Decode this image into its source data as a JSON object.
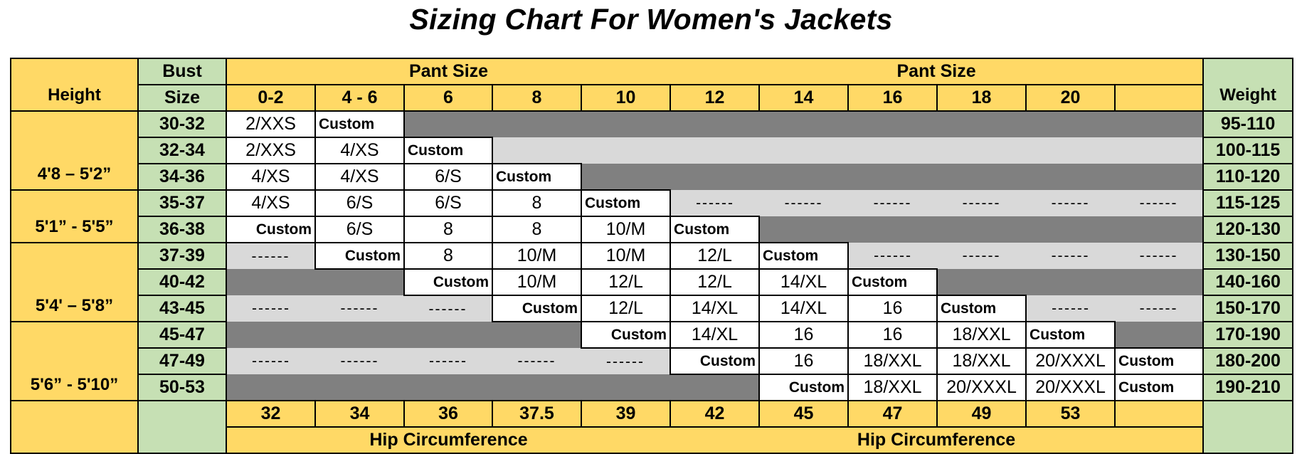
{
  "title": "Sizing Chart For Women's Jackets",
  "headers": {
    "height": "Height",
    "bust_top": "Bust",
    "bust_bottom": "Size",
    "pant_size_left": "Pant Size",
    "pant_size_right": "Pant Size",
    "weight": "Weight",
    "hip_left": "Hip Circumference",
    "hip_right": "Hip Circumference"
  },
  "pant_sizes": [
    "0-2",
    "4 - 6",
    "6",
    "8",
    "10",
    "12",
    "14",
    "16",
    "18",
    "20",
    ""
  ],
  "hip_values": [
    "32",
    "34",
    "36",
    "37.5",
    "39",
    "42",
    "45",
    "47",
    "49",
    "53",
    ""
  ],
  "height_groups": [
    "4'8 – 5'2”",
    "5'1” - 5'5”",
    "5'4' – 5'8”",
    "5'6” - 5'10”"
  ],
  "colors": {
    "yellow": "#FFD966",
    "green": "#C6E0B4",
    "dark_gray": "#808080",
    "light_gray": "#D9D9D9",
    "white": "#FFFFFF"
  },
  "rows": [
    {
      "bust": "30-32",
      "weight": "95-110",
      "cells": [
        [
          "w",
          "2/XXS"
        ],
        [
          "w",
          "Custom"
        ],
        [
          "dk",
          ""
        ],
        [
          "dk",
          ""
        ],
        [
          "dk",
          ""
        ],
        [
          "dk",
          ""
        ],
        [
          "dk",
          ""
        ],
        [
          "dk",
          ""
        ],
        [
          "dk",
          ""
        ],
        [
          "dk",
          ""
        ],
        [
          "dk",
          ""
        ]
      ]
    },
    {
      "bust": "32-34",
      "weight": "100-115",
      "cells": [
        [
          "w",
          "2/XXS"
        ],
        [
          "w",
          "4/XS"
        ],
        [
          "w",
          "Custom"
        ],
        [
          "lt",
          ""
        ],
        [
          "lt",
          ""
        ],
        [
          "lt",
          ""
        ],
        [
          "lt",
          ""
        ],
        [
          "lt",
          ""
        ],
        [
          "lt",
          ""
        ],
        [
          "lt",
          ""
        ],
        [
          "lt",
          ""
        ]
      ]
    },
    {
      "bust": "34-36",
      "weight": "110-120",
      "cells": [
        [
          "w",
          "4/XS"
        ],
        [
          "w",
          "4/XS"
        ],
        [
          "w",
          "6/S"
        ],
        [
          "w",
          "Custom"
        ],
        [
          "dk",
          ""
        ],
        [
          "dk",
          ""
        ],
        [
          "dk",
          ""
        ],
        [
          "dk",
          ""
        ],
        [
          "dk",
          ""
        ],
        [
          "dk",
          ""
        ],
        [
          "dk",
          ""
        ]
      ]
    },
    {
      "bust": "35-37",
      "weight": "115-125",
      "cells": [
        [
          "w",
          "4/XS"
        ],
        [
          "w",
          "6/S"
        ],
        [
          "w",
          "6/S"
        ],
        [
          "w",
          "8"
        ],
        [
          "w",
          "Custom"
        ],
        [
          "lt",
          "------"
        ],
        [
          "lt",
          "------"
        ],
        [
          "lt",
          "------"
        ],
        [
          "lt",
          "------"
        ],
        [
          "lt",
          "------"
        ],
        [
          "lt",
          "------"
        ]
      ]
    },
    {
      "bust": "36-38",
      "weight": "120-130",
      "cells": [
        [
          "w",
          "Custom"
        ],
        [
          "w",
          "6/S"
        ],
        [
          "w",
          "8"
        ],
        [
          "w",
          "8"
        ],
        [
          "w",
          "10/M"
        ],
        [
          "w",
          "Custom"
        ],
        [
          "dk",
          ""
        ],
        [
          "dk",
          ""
        ],
        [
          "dk",
          ""
        ],
        [
          "dk",
          ""
        ],
        [
          "dk",
          ""
        ]
      ]
    },
    {
      "bust": "37-39",
      "weight": "130-150",
      "cells": [
        [
          "lt",
          "------"
        ],
        [
          "w",
          "Custom"
        ],
        [
          "w",
          "8"
        ],
        [
          "w",
          "10/M"
        ],
        [
          "w",
          "10/M"
        ],
        [
          "w",
          "12/L"
        ],
        [
          "w",
          "Custom"
        ],
        [
          "lt",
          "------"
        ],
        [
          "lt",
          "------"
        ],
        [
          "lt",
          "------"
        ],
        [
          "lt",
          "------"
        ]
      ]
    },
    {
      "bust": "40-42",
      "weight": "140-160",
      "cells": [
        [
          "dk",
          ""
        ],
        [
          "dk",
          ""
        ],
        [
          "w",
          "Custom"
        ],
        [
          "w",
          "10/M"
        ],
        [
          "w",
          "12/L"
        ],
        [
          "w",
          "12/L"
        ],
        [
          "w",
          "14/XL"
        ],
        [
          "w",
          "Custom"
        ],
        [
          "dk",
          ""
        ],
        [
          "dk",
          ""
        ],
        [
          "dk",
          ""
        ]
      ]
    },
    {
      "bust": "43-45",
      "weight": "150-170",
      "cells": [
        [
          "lt",
          "------"
        ],
        [
          "lt",
          "------"
        ],
        [
          "lt",
          "------"
        ],
        [
          "w",
          "Custom"
        ],
        [
          "w",
          "12/L"
        ],
        [
          "w",
          "14/XL"
        ],
        [
          "w",
          "14/XL"
        ],
        [
          "w",
          "16"
        ],
        [
          "w",
          "Custom"
        ],
        [
          "lt",
          "------"
        ],
        [
          "lt",
          "------"
        ]
      ]
    },
    {
      "bust": "45-47",
      "weight": "170-190",
      "cells": [
        [
          "dk",
          ""
        ],
        [
          "dk",
          ""
        ],
        [
          "dk",
          ""
        ],
        [
          "dk",
          ""
        ],
        [
          "w",
          "Custom"
        ],
        [
          "w",
          "14/XL"
        ],
        [
          "w",
          "16"
        ],
        [
          "w",
          "16"
        ],
        [
          "w",
          "18/XXL"
        ],
        [
          "w",
          "Custom"
        ],
        [
          "dk",
          ""
        ]
      ]
    },
    {
      "bust": "47-49",
      "weight": "180-200",
      "cells": [
        [
          "lt",
          "------"
        ],
        [
          "lt",
          "------"
        ],
        [
          "lt",
          "------"
        ],
        [
          "lt",
          "------"
        ],
        [
          "lt",
          "------"
        ],
        [
          "w",
          "Custom"
        ],
        [
          "w",
          "16"
        ],
        [
          "w",
          "18/XXL"
        ],
        [
          "w",
          "18/XXL"
        ],
        [
          "w",
          "20/XXXL"
        ],
        [
          "w",
          "Custom"
        ]
      ]
    },
    {
      "bust": "50-53",
      "weight": "190-210",
      "cells": [
        [
          "dk",
          ""
        ],
        [
          "dk",
          ""
        ],
        [
          "dk",
          ""
        ],
        [
          "dk",
          ""
        ],
        [
          "dk",
          ""
        ],
        [
          "dk",
          ""
        ],
        [
          "w",
          "Custom"
        ],
        [
          "w",
          "18/XXL"
        ],
        [
          "w",
          "20/XXXL"
        ],
        [
          "w",
          "20/XXXL"
        ],
        [
          "w",
          "Custom"
        ]
      ]
    }
  ]
}
